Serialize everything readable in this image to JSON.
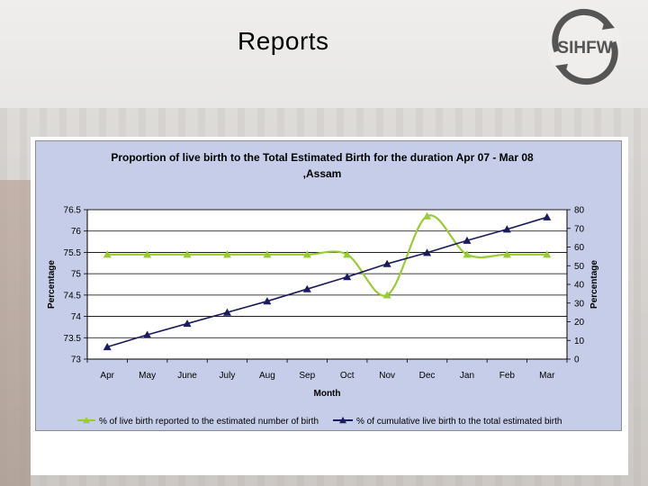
{
  "slide": {
    "title": "Reports",
    "logo_text": "SIHFW"
  },
  "colors": {
    "series1": "#99cc33",
    "series2": "#1a1a5e",
    "plot_bg": "#ffffff",
    "frame_bg": "#c6cde8"
  },
  "chart_data": {
    "type": "line",
    "title": "Proportion of live birth to the Total Estimated Birth for the duration Apr 07 - Mar 08 ,Assam",
    "title_line1": "Proportion of live birth to the Total Estimated Birth for the duration Apr 07 - Mar 08",
    "title_line2": ",Assam",
    "xlabel": "Month",
    "ylabel_left": "Percentage",
    "ylabel_right": "Percentage",
    "categories": [
      "Apr",
      "May",
      "June",
      "July",
      "Aug",
      "Sep",
      "Oct",
      "Nov",
      "Dec",
      "Jan",
      "Feb",
      "Mar"
    ],
    "ylim_left": [
      73,
      76.5
    ],
    "yticks_left": [
      "73",
      "73.5",
      "74",
      "74.5",
      "75",
      "75.5",
      "76",
      "76.5"
    ],
    "ylim_right": [
      0,
      80
    ],
    "yticks_right": [
      "0",
      "10",
      "20",
      "30",
      "40",
      "50",
      "60",
      "70",
      "80"
    ],
    "grid": true,
    "legend_position": "bottom",
    "series": [
      {
        "name": "% of live birth reported to the estimated number of birth",
        "axis": "left",
        "marker": "triangle",
        "smooth": true,
        "values": [
          75.45,
          75.45,
          75.45,
          75.45,
          75.45,
          75.45,
          75.45,
          74.5,
          76.35,
          75.45,
          75.45,
          75.45
        ]
      },
      {
        "name": "% of cumulative live birth to the total estimated birth",
        "axis": "right",
        "marker": "triangle",
        "smooth": false,
        "values": [
          6.5,
          13,
          19,
          25,
          31,
          37.5,
          44,
          51,
          57,
          63.5,
          69.5,
          76
        ]
      }
    ]
  }
}
